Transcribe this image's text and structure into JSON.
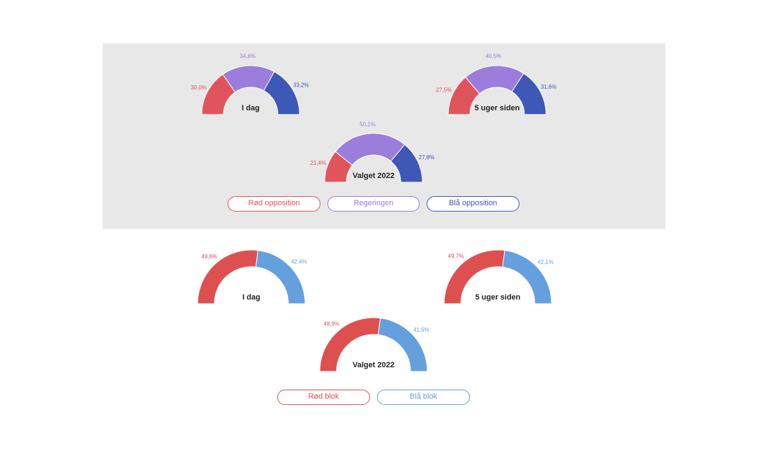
{
  "colors": {
    "panel_bg": "#e8e8e8",
    "red": "#e0545c",
    "purple": "#9b7ddc",
    "blue": "#3e58b8",
    "block_red": "#de5050",
    "block_blue": "#64a0de"
  },
  "chart_data": [
    {
      "type": "gauge",
      "group": "opposition",
      "title": "I dag",
      "series": [
        {
          "name": "Rød opposition",
          "value": 30.0,
          "label": "30,0%"
        },
        {
          "name": "Regeringen",
          "value": 34.6,
          "label": "34,6%"
        },
        {
          "name": "Blå opposition",
          "value": 33.2,
          "label": "33,2%"
        }
      ]
    },
    {
      "type": "gauge",
      "group": "opposition",
      "title": "5 uger siden",
      "series": [
        {
          "name": "Rød opposition",
          "value": 27.5,
          "label": "27,5%"
        },
        {
          "name": "Regeringen",
          "value": 40.5,
          "label": "40,5%"
        },
        {
          "name": "Blå opposition",
          "value": 31.6,
          "label": "31,6%"
        }
      ]
    },
    {
      "type": "gauge",
      "group": "opposition",
      "title": "Valget 2022",
      "series": [
        {
          "name": "Rød opposition",
          "value": 21.4,
          "label": "21,4%"
        },
        {
          "name": "Regeringen",
          "value": 50.1,
          "label": "50,1%"
        },
        {
          "name": "Blå opposition",
          "value": 27.8,
          "label": "27,8%"
        }
      ]
    },
    {
      "type": "gauge",
      "group": "blok",
      "title": "I dag",
      "series": [
        {
          "name": "Rød blok",
          "value": 49.6,
          "label": "49,6%"
        },
        {
          "name": "Blå blok",
          "value": 42.4,
          "label": "42,4%"
        }
      ]
    },
    {
      "type": "gauge",
      "group": "blok",
      "title": "5 uger siden",
      "series": [
        {
          "name": "Rød blok",
          "value": 49.7,
          "label": "49,7%"
        },
        {
          "name": "Blå blok",
          "value": 42.1,
          "label": "42,1%"
        }
      ]
    },
    {
      "type": "gauge",
      "group": "blok",
      "title": "Valget 2022",
      "series": [
        {
          "name": "Rød blok",
          "value": 48.9,
          "label": "48,9%"
        },
        {
          "name": "Blå blok",
          "value": 41.6,
          "label": "41,6%"
        }
      ]
    }
  ],
  "legend_top": {
    "red": "Rød opposition",
    "purple": "Regeringen",
    "blue": "Blå opposition"
  },
  "legend_bottom": {
    "red": "Rød blok",
    "blue": "Blå blok"
  }
}
